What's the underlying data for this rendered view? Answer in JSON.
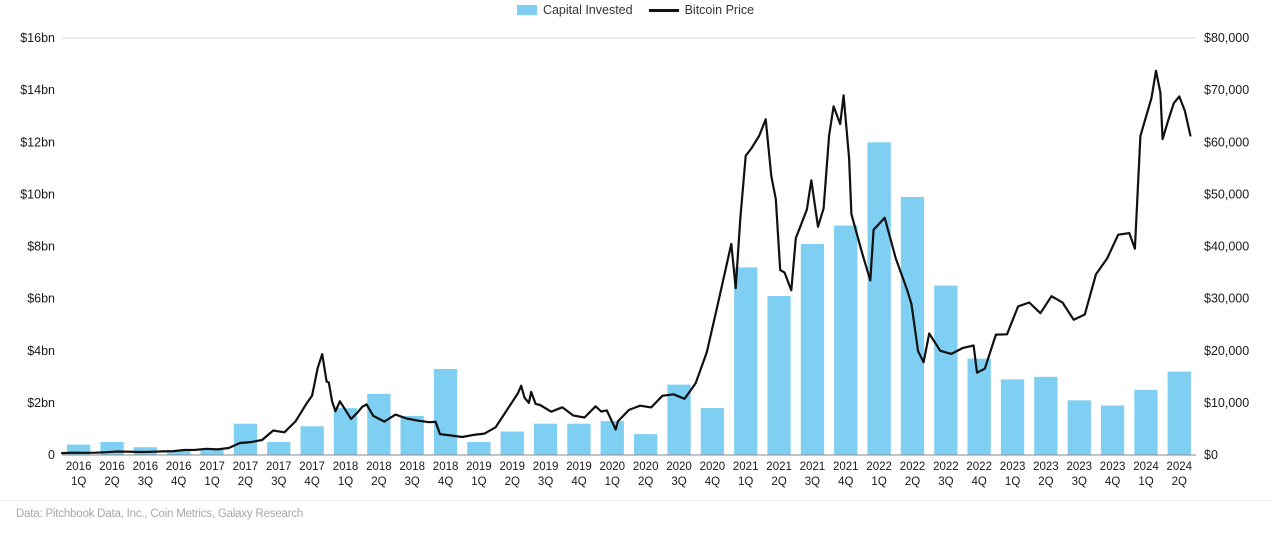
{
  "legend": {
    "capital_invested": "Capital Invested",
    "bitcoin_price": "Bitcoin Price"
  },
  "footer": {
    "source": "Data: Pitchbook Data, Inc., Coin Metrics, Galaxy Research"
  },
  "chart_data": {
    "type": "bar",
    "subtype": "bar+line dual-axis combo",
    "title": "",
    "grid": "top and bottom lines only",
    "legend_position": "top-center",
    "categories": [
      [
        "2016",
        "1Q"
      ],
      [
        "2016",
        "2Q"
      ],
      [
        "2016",
        "3Q"
      ],
      [
        "2016",
        "4Q"
      ],
      [
        "2017",
        "1Q"
      ],
      [
        "2017",
        "2Q"
      ],
      [
        "2017",
        "3Q"
      ],
      [
        "2017",
        "4Q"
      ],
      [
        "2018",
        "1Q"
      ],
      [
        "2018",
        "2Q"
      ],
      [
        "2018",
        "3Q"
      ],
      [
        "2018",
        "4Q"
      ],
      [
        "2019",
        "1Q"
      ],
      [
        "2019",
        "2Q"
      ],
      [
        "2019",
        "3Q"
      ],
      [
        "2019",
        "4Q"
      ],
      [
        "2020",
        "1Q"
      ],
      [
        "2020",
        "2Q"
      ],
      [
        "2020",
        "3Q"
      ],
      [
        "2020",
        "4Q"
      ],
      [
        "2021",
        "1Q"
      ],
      [
        "2021",
        "2Q"
      ],
      [
        "2021",
        "3Q"
      ],
      [
        "2021",
        "4Q"
      ],
      [
        "2022",
        "1Q"
      ],
      [
        "2022",
        "2Q"
      ],
      [
        "2022",
        "3Q"
      ],
      [
        "2022",
        "4Q"
      ],
      [
        "2023",
        "1Q"
      ],
      [
        "2023",
        "2Q"
      ],
      [
        "2023",
        "3Q"
      ],
      [
        "2023",
        "4Q"
      ],
      [
        "2024",
        "1Q"
      ],
      [
        "2024",
        "2Q"
      ]
    ],
    "left_axis": {
      "label": "Capital Invested",
      "min": 0,
      "max": 16,
      "tick_labels": [
        "0",
        "$2bn",
        "$4bn",
        "$6bn",
        "$8bn",
        "$10bn",
        "$12bn",
        "$14bn",
        "$16bn"
      ]
    },
    "right_axis": {
      "label": "Bitcoin Price",
      "min": 0,
      "max": 80000,
      "tick_labels": [
        "$0",
        "$10,000",
        "$20,000",
        "$30,000",
        "$40,000",
        "$50,000",
        "$60,000",
        "$70,000",
        "$80,000"
      ]
    },
    "series": [
      {
        "name": "Capital Invested",
        "type": "bar",
        "axis": "left",
        "unit": "$bn",
        "color": "#7FCFF2",
        "values": [
          0.4,
          0.5,
          0.3,
          0.15,
          0.2,
          1.2,
          0.5,
          1.1,
          1.8,
          2.35,
          1.5,
          3.3,
          0.5,
          0.9,
          1.2,
          1.2,
          1.3,
          0.8,
          2.7,
          1.8,
          7.2,
          6.1,
          8.1,
          8.8,
          12.0,
          9.9,
          6.5,
          3.7,
          2.9,
          3.0,
          2.1,
          1.9,
          2.5,
          3.2
        ]
      },
      {
        "name": "Bitcoin Price",
        "type": "line",
        "axis": "right",
        "unit": "USD",
        "color": "#111111",
        "x_unit": "months since Jan 2016",
        "points": [
          [
            0,
            370
          ],
          [
            1,
            437
          ],
          [
            2,
            416
          ],
          [
            3,
            448
          ],
          [
            4,
            531
          ],
          [
            5,
            670
          ],
          [
            6,
            624
          ],
          [
            7,
            575
          ],
          [
            8,
            610
          ],
          [
            9,
            700
          ],
          [
            10,
            745
          ],
          [
            11,
            960
          ],
          [
            12,
            970
          ],
          [
            13,
            1180
          ],
          [
            14,
            1080
          ],
          [
            15,
            1350
          ],
          [
            16,
            2300
          ],
          [
            17,
            2480
          ],
          [
            18,
            2870
          ],
          [
            19,
            4700
          ],
          [
            20,
            4350
          ],
          [
            21,
            6450
          ],
          [
            22,
            9900
          ],
          [
            22.5,
            11400
          ],
          [
            23,
            16700
          ],
          [
            23.4,
            19350
          ],
          [
            23.8,
            14100
          ],
          [
            24,
            13900
          ],
          [
            24.3,
            10200
          ],
          [
            24.6,
            8400
          ],
          [
            25,
            10300
          ],
          [
            26,
            6900
          ],
          [
            26.6,
            8200
          ],
          [
            27,
            9240
          ],
          [
            27.4,
            9700
          ],
          [
            28,
            7500
          ],
          [
            29,
            6400
          ],
          [
            30,
            7750
          ],
          [
            31,
            7000
          ],
          [
            32,
            6600
          ],
          [
            33,
            6300
          ],
          [
            33.6,
            6350
          ],
          [
            34,
            4000
          ],
          [
            35,
            3740
          ],
          [
            36,
            3460
          ],
          [
            37,
            3850
          ],
          [
            38,
            4100
          ],
          [
            39,
            5320
          ],
          [
            40,
            8550
          ],
          [
            41,
            11800
          ],
          [
            41.3,
            13300
          ],
          [
            41.6,
            11000
          ],
          [
            42,
            10000
          ],
          [
            42.2,
            12100
          ],
          [
            42.6,
            9800
          ],
          [
            43,
            9600
          ],
          [
            44,
            8300
          ],
          [
            45,
            9150
          ],
          [
            46,
            7550
          ],
          [
            47,
            7200
          ],
          [
            48,
            9350
          ],
          [
            48.5,
            8350
          ],
          [
            49,
            8550
          ],
          [
            49.8,
            4900
          ],
          [
            50,
            6440
          ],
          [
            51,
            8650
          ],
          [
            52,
            9450
          ],
          [
            53,
            9140
          ],
          [
            54,
            11350
          ],
          [
            55,
            11650
          ],
          [
            56,
            10780
          ],
          [
            57,
            13800
          ],
          [
            58,
            19700
          ],
          [
            59,
            29000
          ],
          [
            60.2,
            40500
          ],
          [
            60.6,
            32000
          ],
          [
            61,
            45100
          ],
          [
            61.5,
            57400
          ],
          [
            62,
            58800
          ],
          [
            62.7,
            61200
          ],
          [
            63.3,
            64400
          ],
          [
            63.8,
            53500
          ],
          [
            64.2,
            49100
          ],
          [
            64.6,
            35500
          ],
          [
            65,
            35000
          ],
          [
            65.6,
            31600
          ],
          [
            66,
            41600
          ],
          [
            67,
            47100
          ],
          [
            67.4,
            52700
          ],
          [
            68,
            43800
          ],
          [
            68.5,
            47300
          ],
          [
            69,
            61300
          ],
          [
            69.4,
            66900
          ],
          [
            70,
            63500
          ],
          [
            70.3,
            69000
          ],
          [
            70.8,
            56900
          ],
          [
            71,
            46200
          ],
          [
            72,
            38500
          ],
          [
            72.7,
            33500
          ],
          [
            73,
            43200
          ],
          [
            74,
            45500
          ],
          [
            75,
            37700
          ],
          [
            76,
            31800
          ],
          [
            76.4,
            29000
          ],
          [
            77,
            19900
          ],
          [
            77.5,
            17800
          ],
          [
            78,
            23300
          ],
          [
            79,
            20000
          ],
          [
            80,
            19400
          ],
          [
            81,
            20500
          ],
          [
            82,
            21000
          ],
          [
            82.3,
            15800
          ],
          [
            83,
            16550
          ],
          [
            84,
            23100
          ],
          [
            85,
            23150
          ],
          [
            86,
            28500
          ],
          [
            87,
            29250
          ],
          [
            88,
            27200
          ],
          [
            89,
            30470
          ],
          [
            90,
            29230
          ],
          [
            91,
            25930
          ],
          [
            92,
            26960
          ],
          [
            93,
            34650
          ],
          [
            94,
            37700
          ],
          [
            95,
            42270
          ],
          [
            96,
            42580
          ],
          [
            96.5,
            39600
          ],
          [
            97,
            61200
          ],
          [
            98,
            68500
          ],
          [
            98.4,
            73700
          ],
          [
            98.8,
            69500
          ],
          [
            99,
            60600
          ],
          [
            99.5,
            64200
          ],
          [
            100,
            67500
          ],
          [
            100.5,
            68800
          ],
          [
            101,
            66000
          ],
          [
            101.5,
            61300
          ]
        ]
      }
    ]
  }
}
